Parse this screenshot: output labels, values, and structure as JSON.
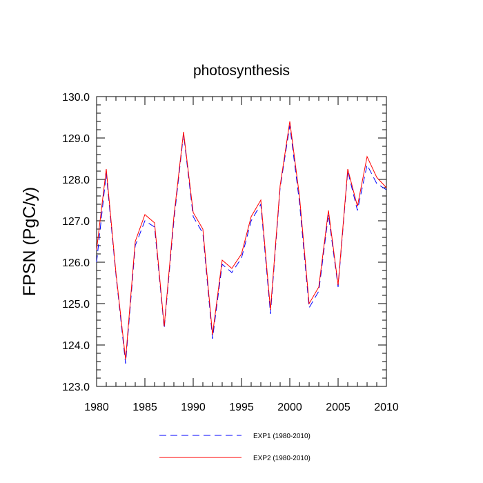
{
  "chart_data": {
    "type": "line",
    "title": "photosynthesis",
    "xlabel": "",
    "ylabel": "FPSN  (PgC/y)",
    "xlim": [
      1980,
      2010
    ],
    "ylim": [
      123.0,
      130.0
    ],
    "x_ticks": [
      1980,
      1985,
      1990,
      1995,
      2000,
      2005,
      2010
    ],
    "x_tick_labels": [
      "1980",
      "1985",
      "1990",
      "1995",
      "2000",
      "2005",
      "2010"
    ],
    "y_ticks": [
      123.0,
      124.0,
      125.0,
      126.0,
      127.0,
      128.0,
      129.0,
      130.0
    ],
    "y_tick_labels": [
      "123.0",
      "124.0",
      "125.0",
      "126.0",
      "127.0",
      "128.0",
      "129.0",
      "130.0"
    ],
    "grid": false,
    "legend_placement": "bottom",
    "x": [
      1980,
      1981,
      1982,
      1983,
      1984,
      1985,
      1986,
      1987,
      1988,
      1989,
      1990,
      1991,
      1992,
      1993,
      1994,
      1995,
      1996,
      1997,
      1998,
      1999,
      2000,
      2001,
      2002,
      2003,
      2004,
      2005,
      2006,
      2007,
      2008,
      2009,
      2010
    ],
    "series": [
      {
        "name": "EXP1 (1980-2010)",
        "color": "#0000ff",
        "style": "dashed",
        "values": [
          126.0,
          128.15,
          125.7,
          123.55,
          126.4,
          127.0,
          126.85,
          124.4,
          127.0,
          129.1,
          127.1,
          126.7,
          124.15,
          125.95,
          125.75,
          126.1,
          127.0,
          127.4,
          124.75,
          127.8,
          129.3,
          127.45,
          124.9,
          125.3,
          127.15,
          125.4,
          128.2,
          127.25,
          128.35,
          127.9,
          127.75
        ]
      },
      {
        "name": "EXP2 (1980-2010)",
        "color": "#ff0000",
        "style": "solid",
        "values": [
          126.3,
          128.25,
          125.75,
          123.65,
          126.5,
          127.15,
          126.95,
          124.45,
          127.1,
          129.15,
          127.2,
          126.8,
          124.25,
          126.05,
          125.85,
          126.2,
          127.1,
          127.5,
          124.85,
          127.85,
          129.4,
          127.6,
          125.0,
          125.4,
          127.25,
          125.45,
          128.25,
          127.35,
          128.55,
          128.05,
          127.8
        ]
      }
    ]
  }
}
